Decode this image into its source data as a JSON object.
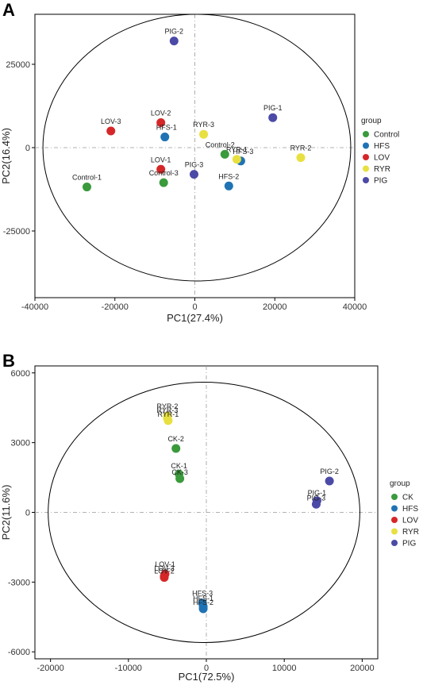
{
  "chart_data": [
    {
      "panel_label": "A",
      "type": "scatter",
      "xlabel": "PC1(27.4%)",
      "ylabel": "PC2(16.4%)",
      "xlim": [
        -40000,
        40000
      ],
      "ylim": [
        -45000,
        40000
      ],
      "xticks": [
        -40000,
        -20000,
        0,
        20000,
        40000
      ],
      "yticks": [
        -25000,
        0,
        25000
      ],
      "ellipse": {
        "cx": 500,
        "cy": 0,
        "rx": 38500,
        "ry": 40000
      },
      "legend_title": "group",
      "legend_position": "right",
      "groups": [
        {
          "name": "Control",
          "color": "#3a9a3c"
        },
        {
          "name": "HFS",
          "color": "#1f73b4"
        },
        {
          "name": "LOV",
          "color": "#d62728"
        },
        {
          "name": "RYR",
          "color": "#e8e040"
        },
        {
          "name": "PIG",
          "color": "#4b4aa6"
        }
      ],
      "points": [
        {
          "label": "PIG-2",
          "group": "PIG",
          "x": -5200,
          "y": 32000
        },
        {
          "label": "PIG-1",
          "group": "PIG",
          "x": 19500,
          "y": 9000
        },
        {
          "label": "PIG-3",
          "group": "PIG",
          "x": -200,
          "y": -8000
        },
        {
          "label": "LOV-3",
          "group": "LOV",
          "x": -21000,
          "y": 5000
        },
        {
          "label": "LOV-2",
          "group": "LOV",
          "x": -8500,
          "y": 7500
        },
        {
          "label": "LOV-1",
          "group": "LOV",
          "x": -8500,
          "y": -6500
        },
        {
          "label": "HFS-1",
          "group": "HFS",
          "x": -7500,
          "y": 3200
        },
        {
          "label": "HFS-3",
          "group": "HFS",
          "x": 11500,
          "y": -4000
        },
        {
          "label": "HFS-2",
          "group": "HFS",
          "x": 8500,
          "y": -11500
        },
        {
          "label": "RYR-3",
          "group": "RYR",
          "x": 2200,
          "y": 4000
        },
        {
          "label": "RYR-1",
          "group": "RYR",
          "x": 10500,
          "y": -3500
        },
        {
          "label": "RYR-2",
          "group": "RYR",
          "x": 26500,
          "y": -3000
        },
        {
          "label": "Control-2",
          "group": "Control",
          "x": 7500,
          "y": -2000
        },
        {
          "label": "Control-1",
          "group": "Control",
          "x": -27000,
          "y": -11800
        },
        {
          "label": "Control-3",
          "group": "Control",
          "x": -7800,
          "y": -10500
        }
      ]
    },
    {
      "panel_label": "B",
      "type": "scatter",
      "xlabel": "PC1(72.5%)",
      "ylabel": "PC2(11.6%)",
      "xlim": [
        -22000,
        22000
      ],
      "ylim": [
        -6300,
        6300
      ],
      "xticks": [
        -20000,
        -10000,
        0,
        10000,
        20000
      ],
      "yticks": [
        -6000,
        -3000,
        0,
        3000,
        6000
      ],
      "ellipse": {
        "cx": -300,
        "cy": 0,
        "rx": 20000,
        "ry": 5600
      },
      "legend_title": "group",
      "legend_position": "right",
      "groups": [
        {
          "name": "CK",
          "color": "#3a9a3c"
        },
        {
          "name": "HFS",
          "color": "#1f73b4"
        },
        {
          "name": "LOV",
          "color": "#d62728"
        },
        {
          "name": "RYR",
          "color": "#e8e040"
        },
        {
          "name": "PIG",
          "color": "#4b4aa6"
        }
      ],
      "points": [
        {
          "label": "RYR-2",
          "group": "RYR",
          "x": -5000,
          "y": 4150
        },
        {
          "label": "RYR-3",
          "group": "RYR",
          "x": -5000,
          "y": 4050
        },
        {
          "label": "RYR-1",
          "group": "RYR",
          "x": -4900,
          "y": 3950
        },
        {
          "label": "CK-2",
          "group": "CK",
          "x": -3900,
          "y": 2750
        },
        {
          "label": "CK-1",
          "group": "CK",
          "x": -3500,
          "y": 1650
        },
        {
          "label": "CK-3",
          "group": "CK",
          "x": -3400,
          "y": 1450
        },
        {
          "label": "PIG-2",
          "group": "PIG",
          "x": 15800,
          "y": 1350
        },
        {
          "label": "PIG-1",
          "group": "PIG",
          "x": 14200,
          "y": 500
        },
        {
          "label": "PIG-3",
          "group": "PIG",
          "x": 14100,
          "y": 350
        },
        {
          "label": "LOV-1",
          "group": "LOV",
          "x": -5300,
          "y": -2650
        },
        {
          "label": "LOV-3",
          "group": "LOV",
          "x": -5400,
          "y": -2750
        },
        {
          "label": "LOV-2",
          "group": "LOV",
          "x": -5400,
          "y": -2800
        },
        {
          "label": "HFS-3",
          "group": "HFS",
          "x": -500,
          "y": -3900
        },
        {
          "label": "HFS-1",
          "group": "HFS",
          "x": -400,
          "y": -4050
        },
        {
          "label": "HFS-2",
          "group": "HFS",
          "x": -400,
          "y": -4150
        }
      ]
    }
  ]
}
